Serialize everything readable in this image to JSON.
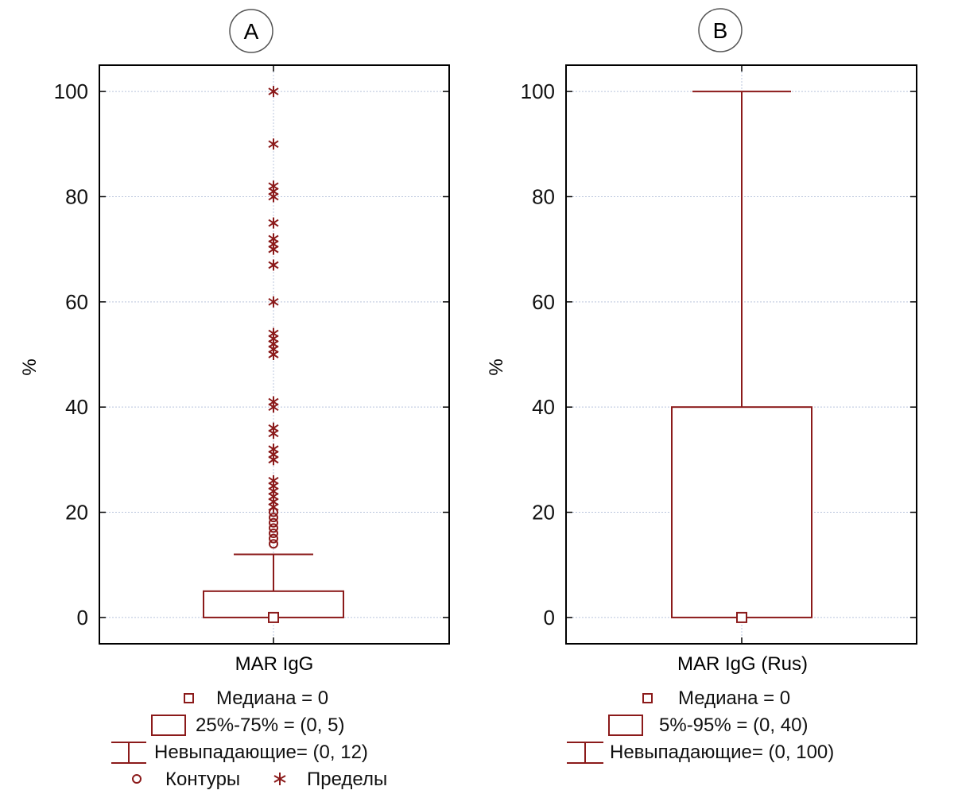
{
  "colors": {
    "box": "#8b1a1a",
    "axis": "#000000",
    "grid": "#b9c4dc"
  },
  "panels": [
    {
      "panel_label": "A",
      "y_label": "%",
      "x_label": "MAR IgG",
      "legend": [
        {
          "icon": "median-square-icon",
          "text": "Медиана = 0"
        },
        {
          "icon": "box-rect-icon",
          "text": "25%-75% = (0, 5)"
        },
        {
          "icon": "whisker-range-icon",
          "text": "Невыпадающие= (0, 12)"
        },
        {
          "icon": "outlier-circle-icon",
          "text": "Контуры"
        },
        {
          "icon": "extreme-asterisk-icon",
          "text": "Пределы"
        }
      ]
    },
    {
      "panel_label": "B",
      "y_label": "%",
      "x_label": "MAR IgG (Rus)",
      "legend": [
        {
          "icon": "median-square-icon",
          "text": "Медиана = 0"
        },
        {
          "icon": "box-rect-icon",
          "text": "5%-95% = (0, 40)"
        },
        {
          "icon": "whisker-range-icon",
          "text": "Невыпадающие= (0, 100)"
        }
      ]
    }
  ],
  "chart_data": [
    {
      "type": "box",
      "panel": "A",
      "category": "MAR IgG",
      "ylabel": "%",
      "ylim": [
        -5,
        105
      ],
      "yticks": [
        0,
        20,
        40,
        60,
        80,
        100
      ],
      "grid": true,
      "median": 0,
      "box": [
        0,
        5
      ],
      "whiskers": [
        0,
        12
      ],
      "outliers": [
        14,
        15,
        16,
        17,
        18,
        19,
        20
      ],
      "extremes": [
        21,
        22,
        23,
        24,
        25,
        26,
        30,
        31,
        32,
        35,
        36,
        40,
        41,
        50,
        51,
        52,
        53,
        54,
        60,
        67,
        70,
        71,
        72,
        75,
        80,
        81,
        82,
        90,
        100
      ]
    },
    {
      "type": "box",
      "panel": "B",
      "category": "MAR IgG (Rus)",
      "ylabel": "%",
      "ylim": [
        -5,
        105
      ],
      "yticks": [
        0,
        20,
        40,
        60,
        80,
        100
      ],
      "grid": true,
      "median": 0,
      "box": [
        0,
        40
      ],
      "whiskers": [
        0,
        100
      ],
      "outliers": [],
      "extremes": []
    }
  ]
}
